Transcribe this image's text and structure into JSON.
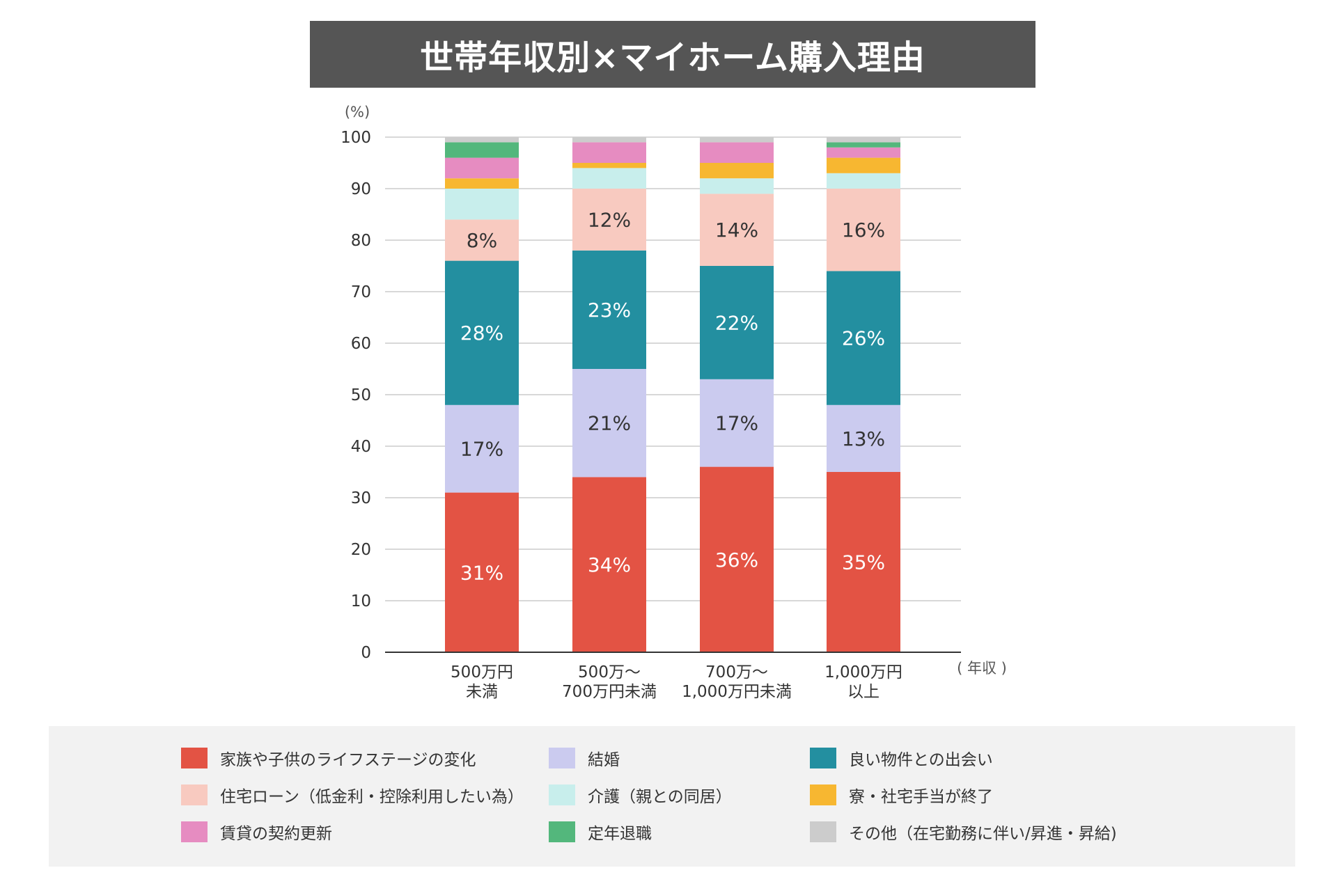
{
  "title": "世帯年収別×マイホーム購入理由",
  "chart_data": {
    "type": "bar",
    "stacked": true,
    "title": "世帯年収別×マイホーム購入理由",
    "ylabel": "(%)",
    "xlabel": "( 年収 )",
    "ylim": [
      0,
      100
    ],
    "yticks": [
      0,
      10,
      20,
      30,
      40,
      50,
      60,
      70,
      80,
      90,
      100
    ],
    "grid": true,
    "categories": [
      "500万円\n未満",
      "500万〜\n700万円未満",
      "700万〜\n1,000万円未満",
      "1,000万円\n以上"
    ],
    "series": [
      {
        "name": "家族や子供のライフステージの変化",
        "color": "#e35344",
        "values": [
          31,
          34,
          36,
          35
        ],
        "labels": [
          "31%",
          "34%",
          "36%",
          "35%"
        ],
        "label_color": "#ffffff"
      },
      {
        "name": "結婚",
        "color": "#cbcbef",
        "values": [
          17,
          21,
          17,
          13
        ],
        "labels": [
          "17%",
          "21%",
          "17%",
          "13%"
        ],
        "label_color": "#333333"
      },
      {
        "name": "良い物件との出会い",
        "color": "#238fa0",
        "values": [
          28,
          23,
          22,
          26
        ],
        "labels": [
          "28%",
          "23%",
          "22%",
          "26%"
        ],
        "label_color": "#ffffff"
      },
      {
        "name": "住宅ローン（低金利・控除利用したい為）",
        "color": "#f8cac0",
        "values": [
          8,
          12,
          14,
          16
        ],
        "labels": [
          "8%",
          "12%",
          "14%",
          "16%"
        ],
        "label_color": "#333333"
      },
      {
        "name": "介護（親との同居）",
        "color": "#c8eeec",
        "values": [
          6,
          4,
          3,
          3
        ],
        "labels": null
      },
      {
        "name": "寮・社宅手当が終了",
        "color": "#f7b731",
        "values": [
          2,
          1,
          3,
          3
        ],
        "labels": null
      },
      {
        "name": "賃貸の契約更新",
        "color": "#e68cc1",
        "values": [
          4,
          4,
          4,
          2
        ],
        "labels": null
      },
      {
        "name": "定年退職",
        "color": "#53b77c",
        "values": [
          3,
          0,
          0,
          1
        ],
        "labels": null
      },
      {
        "name": "その他（在宅勤務に伴い/昇進・昇給)",
        "color": "#cccccc",
        "values": [
          1,
          1,
          1,
          1
        ],
        "labels": null
      }
    ]
  },
  "legend": {
    "items": [
      {
        "label": "家族や子供のライフステージの変化",
        "color": "#e35344"
      },
      {
        "label": "結婚",
        "color": "#cbcbef"
      },
      {
        "label": "良い物件との出会い",
        "color": "#238fa0"
      },
      {
        "label": "住宅ローン（低金利・控除利用したい為）",
        "color": "#f8cac0"
      },
      {
        "label": "介護（親との同居）",
        "color": "#c8eeec"
      },
      {
        "label": "寮・社宅手当が終了",
        "color": "#f7b731"
      },
      {
        "label": "賃貸の契約更新",
        "color": "#e68cc1"
      },
      {
        "label": "定年退職",
        "color": "#53b77c"
      },
      {
        "label": "その他（在宅勤務に伴い/昇進・昇給)",
        "color": "#cccccc"
      }
    ]
  }
}
